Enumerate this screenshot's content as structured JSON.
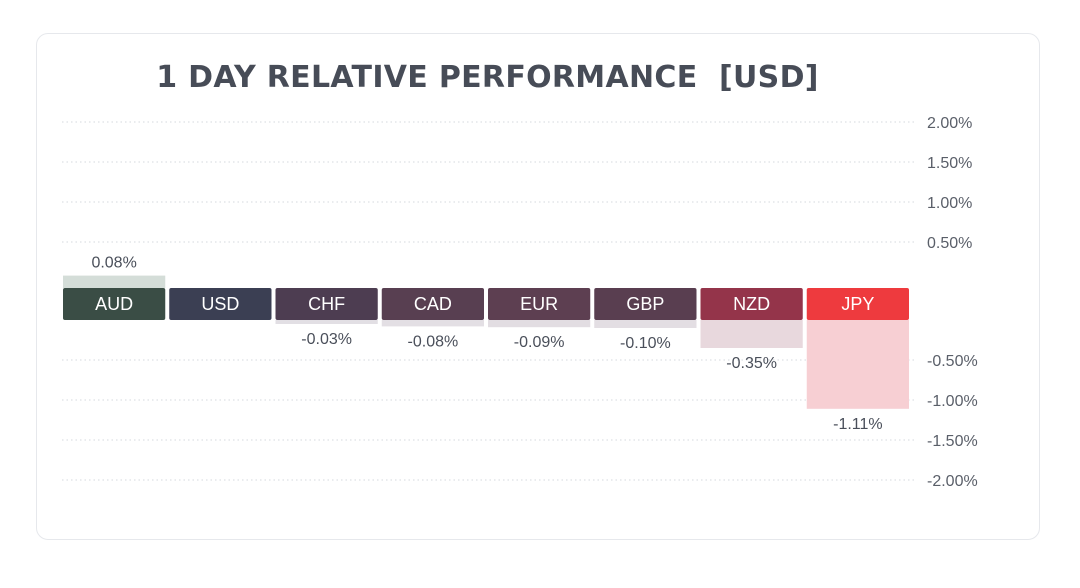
{
  "chart_data": {
    "type": "bar",
    "title": "1 DAY RELATIVE PERFORMANCE  [USD]",
    "categories": [
      "AUD",
      "USD",
      "CHF",
      "CAD",
      "EUR",
      "GBP",
      "NZD",
      "JPY"
    ],
    "values": [
      0.08,
      0,
      -0.03,
      -0.08,
      -0.09,
      -0.1,
      -0.35,
      -1.11
    ],
    "value_labels": [
      "0.08%",
      "",
      "-0.03%",
      "-0.08%",
      "-0.09%",
      "-0.10%",
      "-0.35%",
      "-1.11%"
    ],
    "ylim": [
      -2.0,
      2.0
    ],
    "yticks": [
      2.0,
      1.5,
      1.0,
      0.5,
      -0.5,
      -1.0,
      -1.5,
      -2.0
    ],
    "ytick_labels": [
      "2.00%",
      "1.50%",
      "1.00%",
      "0.50%",
      "-0.50%",
      "-1.00%",
      "-1.50%",
      "-2.00%"
    ],
    "xlabel": "",
    "ylabel": "",
    "grid": true,
    "colors": {
      "label_backgrounds": [
        "#3a4d45",
        "#3b3f53",
        "#4d3d51",
        "#583f51",
        "#5d3f51",
        "#593e50",
        "#94344a",
        "#ee3a3e"
      ],
      "bar_fills": [
        "#d4ddd8",
        "",
        "#e2dfe4",
        "#e3dfe4",
        "#e2dde2",
        "#e3dee3",
        "#e8d8dd",
        "#f7cfd3"
      ],
      "label_text": "#ffffff",
      "value_text": "#4a4f5a",
      "tick_text": "#5a5f69",
      "grid": "#d5d8de"
    }
  }
}
